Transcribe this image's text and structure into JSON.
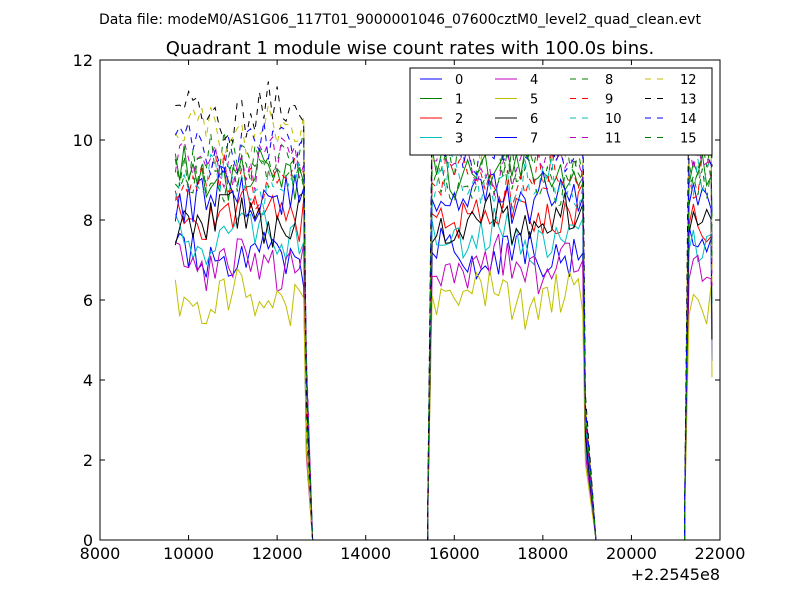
{
  "figure": {
    "suptitle": "Data file: modeM0/AS1G06_117T01_9000001046_07600cztM0_level2_quad_clean.evt"
  },
  "chart_data": {
    "type": "line",
    "title": "Quadrant 1 module wise count rates with 100.0s bins.",
    "xlabel": "",
    "ylabel": "",
    "x_offset_label": "+2.2545e8",
    "xlim": [
      8000,
      22000
    ],
    "ylim": [
      0,
      12
    ],
    "x_ticks": [
      8000,
      10000,
      12000,
      14000,
      16000,
      18000,
      20000,
      22000
    ],
    "y_ticks": [
      0,
      2,
      4,
      6,
      8,
      10,
      12
    ],
    "x_tick_labels": [
      "8000",
      "10000",
      "12000",
      "14000",
      "16000",
      "18000",
      "20000",
      "22000"
    ],
    "y_tick_labels": [
      "0",
      "2",
      "4",
      "6",
      "8",
      "10",
      "12"
    ],
    "grid": false,
    "legend_position": "top-right",
    "legend_columns": 4,
    "segments": [
      {
        "start": 9700,
        "end": 12600,
        "step": 100
      },
      {
        "start": 15500,
        "end": 18900,
        "step": 100
      },
      {
        "start": 21300,
        "end": 21800,
        "step": 100
      }
    ],
    "zero_gaps": [
      {
        "from": 12800,
        "to": 15400
      },
      {
        "from": 19200,
        "to": 21200
      }
    ],
    "series": [
      {
        "name": "0",
        "color": "#0000ff",
        "dash": "solid",
        "level": 7.1
      },
      {
        "name": "1",
        "color": "#008000",
        "dash": "solid",
        "level": 9.2
      },
      {
        "name": "2",
        "color": "#ff0000",
        "dash": "solid",
        "level": 8.2
      },
      {
        "name": "3",
        "color": "#00bfbf",
        "dash": "solid",
        "level": 7.6
      },
      {
        "name": "4",
        "color": "#bf00bf",
        "dash": "solid",
        "level": 6.9
      },
      {
        "name": "5",
        "color": "#bfbf00",
        "dash": "solid",
        "level": 6.0
      },
      {
        "name": "6",
        "color": "#000000",
        "dash": "solid",
        "level": 8.0
      },
      {
        "name": "7",
        "color": "#0000ff",
        "dash": "solid",
        "level": 8.6
      },
      {
        "name": "8",
        "color": "#008000",
        "dash": "dashed",
        "level": 9.5
      },
      {
        "name": "9",
        "color": "#ff0000",
        "dash": "dashed",
        "level": 9.0
      },
      {
        "name": "10",
        "color": "#00bfbf",
        "dash": "dashed",
        "level": 8.9
      },
      {
        "name": "11",
        "color": "#bf00bf",
        "dash": "dashed",
        "level": 9.4
      },
      {
        "name": "12",
        "color": "#bfbf00",
        "dash": "dashed",
        "level": 10.2
      },
      {
        "name": "13",
        "color": "#000000",
        "dash": "dashed",
        "level": 10.7
      },
      {
        "name": "14",
        "color": "#0000ff",
        "dash": "dashed",
        "level": 9.8
      },
      {
        "name": "15",
        "color": "#008000",
        "dash": "dashed",
        "level": 9.1
      }
    ]
  }
}
